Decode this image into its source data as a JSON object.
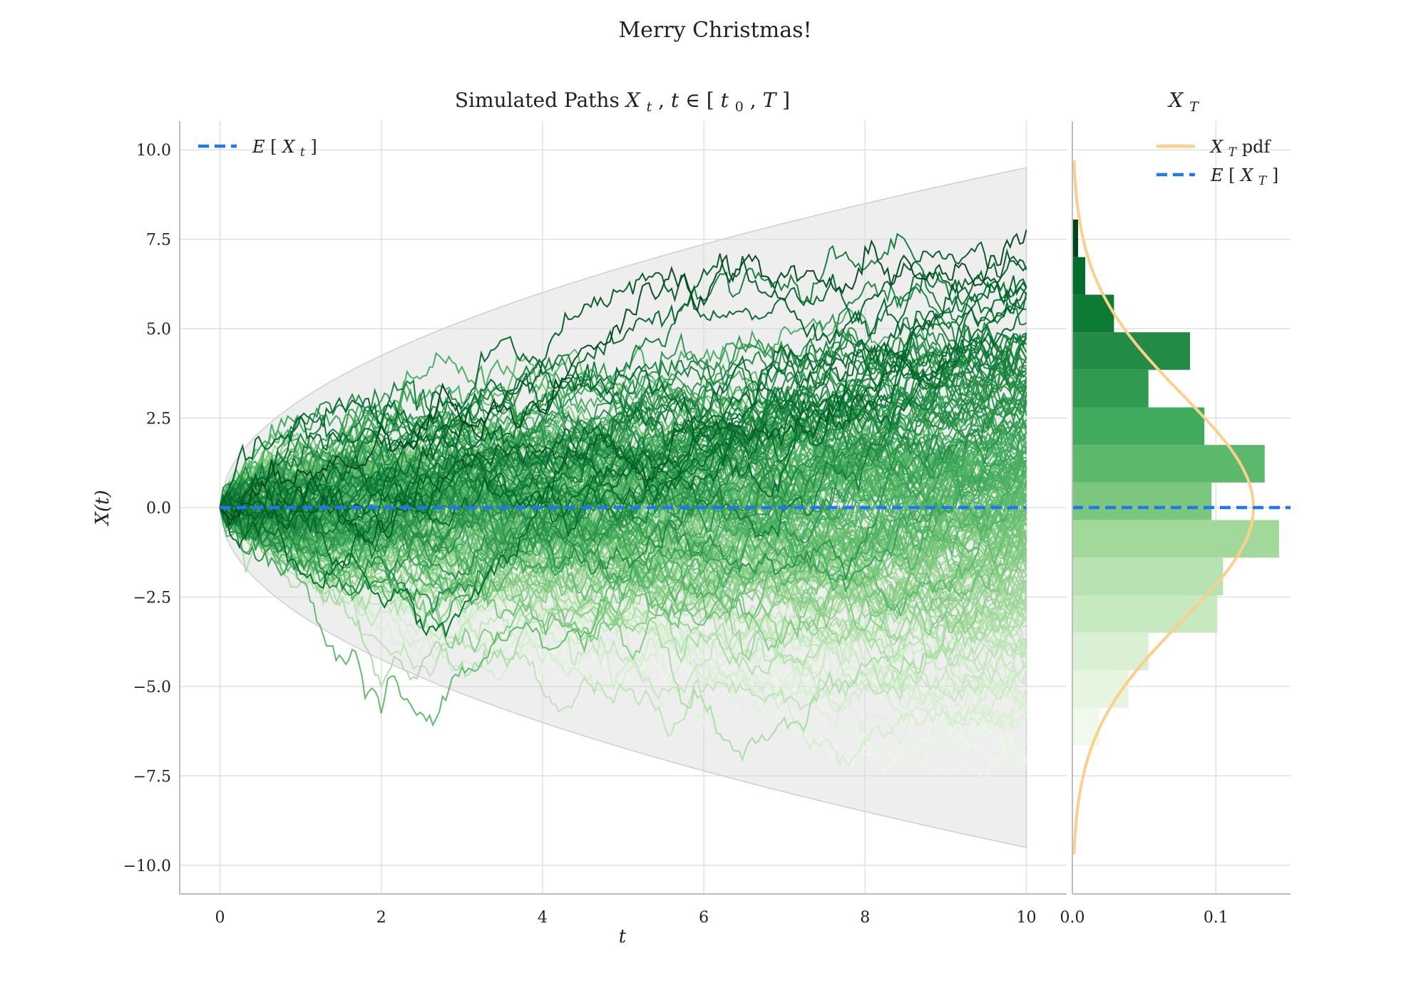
{
  "figure": {
    "suptitle": "Merry Christmas!"
  },
  "chart_data": [
    {
      "type": "line",
      "title": "Simulated Paths X_t, t ∈ [t_0, T]",
      "xlabel": "t",
      "ylabel": "X(t)",
      "xlim": [
        -0.5,
        10.5
      ],
      "ylim": [
        -10.8,
        10.8
      ],
      "xticks": [
        "0",
        "2",
        "4",
        "6",
        "8",
        "10"
      ],
      "yticks": [
        "10.0",
        "7.5",
        "5.0",
        "2.5",
        "0.0",
        "−2.5",
        "−5.0",
        "−7.5",
        "−10.0"
      ],
      "grid": true,
      "legend_position": "top-left",
      "legend": [
        "E[X_t]"
      ],
      "n_paths": 200,
      "t_end": 10,
      "band": {
        "x": [
          0,
          10
        ],
        "upper_at_T": 9.5,
        "lower_at_T": -9.5,
        "shape": "sqrt(t)",
        "color": "#d9d9d9"
      },
      "mean_line": {
        "name": "E[X_t]",
        "value": 0.0,
        "color": "#1f77f4",
        "style": "dashed"
      },
      "colormap": "Greens",
      "colors": {
        "light": "#f7fcf5",
        "dark": "#00441b"
      }
    },
    {
      "type": "bar",
      "orientation": "horizontal",
      "title": "X_T",
      "xticks": [
        "0.0",
        "0.1"
      ],
      "xlim": [
        0.0,
        0.152
      ],
      "grid": true,
      "legend_position": "top-right",
      "legend": [
        "X_T pdf",
        "E[X_T]"
      ],
      "bins": [
        {
          "y0": 7.0,
          "y1": 8.05,
          "density": 0.004,
          "color": "#00441b"
        },
        {
          "y0": 5.95,
          "y1": 7.0,
          "density": 0.009,
          "color": "#006d2c"
        },
        {
          "y0": 4.9,
          "y1": 5.95,
          "density": 0.029,
          "color": "#0d7a36"
        },
        {
          "y0": 3.85,
          "y1": 4.9,
          "density": 0.082,
          "color": "#238b45"
        },
        {
          "y0": 2.8,
          "y1": 3.85,
          "density": 0.053,
          "color": "#2f9a50"
        },
        {
          "y0": 1.75,
          "y1": 2.8,
          "density": 0.092,
          "color": "#41ab5d"
        },
        {
          "y0": 0.7,
          "y1": 1.75,
          "density": 0.134,
          "color": "#5cb86a"
        },
        {
          "y0": -0.35,
          "y1": 0.7,
          "density": 0.097,
          "color": "#7cc77e"
        },
        {
          "y0": -1.4,
          "y1": -0.35,
          "density": 0.144,
          "color": "#a1d99b"
        },
        {
          "y0": -2.45,
          "y1": -1.4,
          "density": 0.105,
          "color": "#b7e2b1"
        },
        {
          "y0": -3.5,
          "y1": -2.45,
          "density": 0.101,
          "color": "#c7e9c0"
        },
        {
          "y0": -4.55,
          "y1": -3.5,
          "density": 0.053,
          "color": "#daf0d4"
        },
        {
          "y0": -5.6,
          "y1": -4.55,
          "density": 0.039,
          "color": "#e5f5e0"
        },
        {
          "y0": -6.65,
          "y1": -5.6,
          "density": 0.019,
          "color": "#f0f9ec"
        }
      ],
      "pdf": {
        "name": "X_T pdf",
        "mean": 0.0,
        "std": 3.162,
        "color": "#fbd08a"
      },
      "mean_line": {
        "name": "E[X_T]",
        "value": 0.0,
        "color": "#1f77f4",
        "style": "dashed"
      }
    }
  ]
}
